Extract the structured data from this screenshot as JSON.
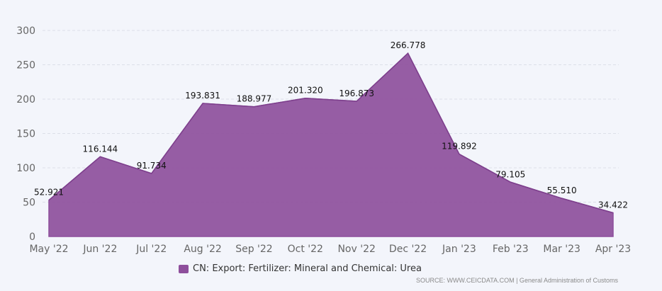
{
  "chart_data": {
    "type": "area",
    "categories": [
      "May '22",
      "Jun '22",
      "Jul '22",
      "Aug '22",
      "Sep '22",
      "Oct '22",
      "Nov '22",
      "Dec '22",
      "Jan '23",
      "Feb '23",
      "Mar '23",
      "Apr '23"
    ],
    "series": [
      {
        "name": "CN: Export: Fertilizer: Mineral and Chemical: Urea",
        "values": [
          52.921,
          116.144,
          91.734,
          193.831,
          188.977,
          201.32,
          196.873,
          266.778,
          119.892,
          79.105,
          55.51,
          34.422
        ],
        "labels": [
          "52.921",
          "116.144",
          "91.734",
          "193.831",
          "188.977",
          "201.320",
          "196.873",
          "266.778",
          "119.892",
          "79.105",
          "55.510",
          "34.422"
        ],
        "color": "#8e4f9c"
      }
    ],
    "yticks": [
      0,
      50,
      100,
      150,
      200,
      250,
      300
    ],
    "ylim": [
      0,
      300
    ],
    "grid": true,
    "legend_position": "bottom"
  },
  "source": "SOURCE: WWW.CEICDATA.COM | General Administration of Customs",
  "colors": {
    "grid": "#dcdfe8",
    "axis_text": "#666666",
    "label_text": "#111111"
  }
}
